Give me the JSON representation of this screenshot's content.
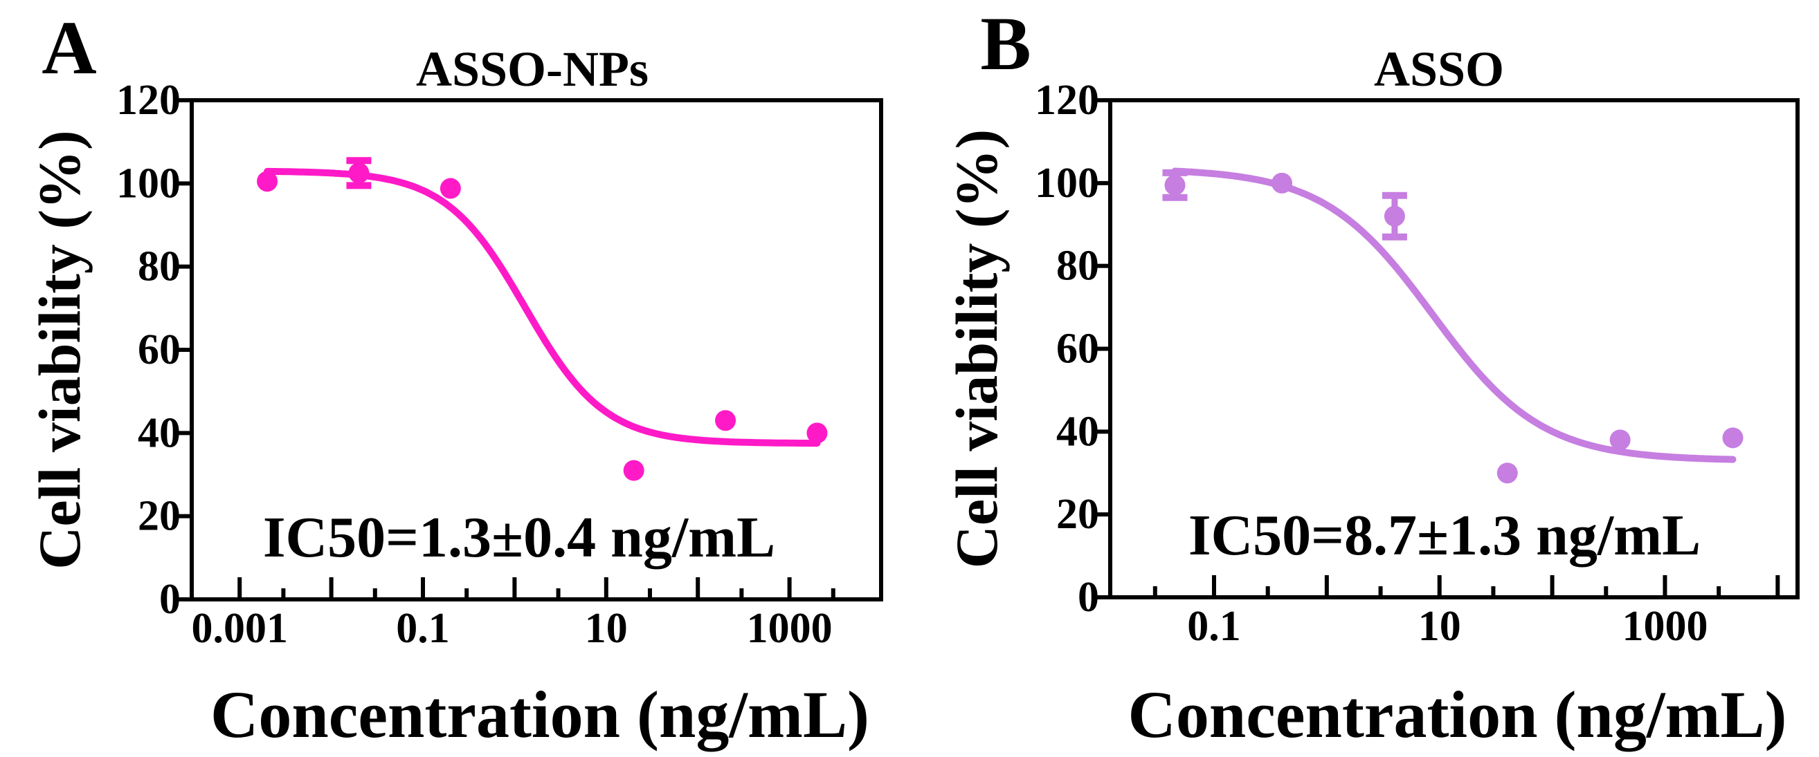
{
  "chart_data": [
    {
      "type": "scatter",
      "panel_label": "A",
      "title": "ASSO-NPs",
      "xlabel": "Concentration (ng/mL)",
      "ylabel": "Cell viability (%)",
      "xscale": "log",
      "xlim": [
        0.0003,
        10000
      ],
      "ylim": [
        0,
        120
      ],
      "xticks": [
        0.001,
        0.1,
        10,
        1000
      ],
      "xtick_labels": [
        "0.001",
        "0.1",
        "10",
        "1000"
      ],
      "yticks": [
        0,
        20,
        40,
        60,
        80,
        100,
        120
      ],
      "ytick_labels": [
        "0",
        "20",
        "40",
        "60",
        "80",
        "100",
        "120"
      ],
      "color": "#ff1ac8",
      "annotation": "IC50=1.3±0.4 ng/mL",
      "points": [
        {
          "x": 0.002,
          "y": 100.5,
          "err": 1
        },
        {
          "x": 0.02,
          "y": 102.5,
          "err": 3
        },
        {
          "x": 0.2,
          "y": 98.8,
          "err": 1
        },
        {
          "x": 20,
          "y": 31,
          "err": 0.5
        },
        {
          "x": 200,
          "y": 43,
          "err": 0.5
        },
        {
          "x": 2000,
          "y": 40,
          "err": 1
        }
      ],
      "fit": {
        "top": 103,
        "bottom": 37.5,
        "ic50": 1.3,
        "hill": 1.0,
        "x_range": [
          0.002,
          2000
        ]
      }
    },
    {
      "type": "scatter",
      "panel_label": "B",
      "title": "ASSO",
      "xlabel": "Concentration (ng/mL)",
      "ylabel": "Cell viability (%)",
      "xscale": "log",
      "xlim": [
        0.012,
        15000
      ],
      "ylim": [
        0,
        120
      ],
      "xticks": [
        0.1,
        10,
        1000
      ],
      "xtick_labels": [
        "0.1",
        "10",
        "1000"
      ],
      "yticks": [
        0,
        20,
        40,
        60,
        80,
        100,
        120
      ],
      "ytick_labels": [
        "0",
        "20",
        "40",
        "60",
        "80",
        "100",
        "120"
      ],
      "color": "#c67ee0",
      "annotation": "IC50=8.7±1.3 ng/mL",
      "points": [
        {
          "x": 0.045,
          "y": 99.5,
          "err": 3
        },
        {
          "x": 0.4,
          "y": 100,
          "err": 0.5
        },
        {
          "x": 4,
          "y": 92,
          "err": 5
        },
        {
          "x": 40,
          "y": 30,
          "err": 0.5
        },
        {
          "x": 400,
          "y": 38,
          "err": 1
        },
        {
          "x": 4000,
          "y": 38.5,
          "err": 1
        }
      ],
      "fit": {
        "top": 103.5,
        "bottom": 33,
        "ic50": 8.7,
        "hill": 0.9,
        "x_range": [
          0.045,
          4000
        ]
      }
    }
  ]
}
